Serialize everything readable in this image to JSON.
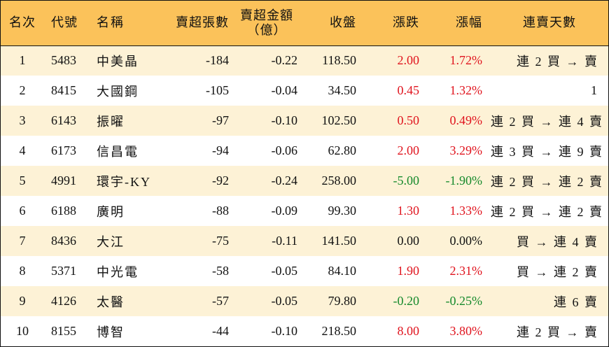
{
  "colors": {
    "header_bg": "#fbc25a",
    "row_alt_bg": "#fdf2d6",
    "up": "#e0141e",
    "down": "#168a2c"
  },
  "headers": {
    "rank": "名次",
    "code": "代號",
    "name": "名稱",
    "net_sell_lots": "賣超張數",
    "net_sell_amount_line1": "賣超金額",
    "net_sell_amount_line2": "（億）",
    "close": "收盤",
    "change": "漲跌",
    "change_pct": "漲幅",
    "streak": "連賣天數"
  },
  "rows": [
    {
      "rank": "1",
      "code": "5483",
      "name": "中美晶",
      "net_sell_lots": "-184",
      "net_sell_amount": "-0.22",
      "close": "118.50",
      "change": "2.00",
      "change_pct": "1.72%",
      "direction": "up",
      "streak": "連 2 買 → 賣"
    },
    {
      "rank": "2",
      "code": "8415",
      "name": "大國鋼",
      "net_sell_lots": "-105",
      "net_sell_amount": "-0.04",
      "close": "34.50",
      "change": "0.45",
      "change_pct": "1.32%",
      "direction": "up",
      "streak": "1"
    },
    {
      "rank": "3",
      "code": "6143",
      "name": "振曜",
      "net_sell_lots": "-97",
      "net_sell_amount": "-0.10",
      "close": "102.50",
      "change": "0.50",
      "change_pct": "0.49%",
      "direction": "up",
      "streak": "連 2 買 → 連 4 賣"
    },
    {
      "rank": "4",
      "code": "6173",
      "name": "信昌電",
      "net_sell_lots": "-94",
      "net_sell_amount": "-0.06",
      "close": "62.80",
      "change": "2.00",
      "change_pct": "3.29%",
      "direction": "up",
      "streak": "連 3 買 → 連 9 賣"
    },
    {
      "rank": "5",
      "code": "4991",
      "name": "環宇-KY",
      "net_sell_lots": "-92",
      "net_sell_amount": "-0.24",
      "close": "258.00",
      "change": "-5.00",
      "change_pct": "-1.90%",
      "direction": "down",
      "streak": "連 2 買 → 連 2 賣"
    },
    {
      "rank": "6",
      "code": "6188",
      "name": "廣明",
      "net_sell_lots": "-88",
      "net_sell_amount": "-0.09",
      "close": "99.30",
      "change": "1.30",
      "change_pct": "1.33%",
      "direction": "up",
      "streak": "連 2 買 → 連 2 賣"
    },
    {
      "rank": "7",
      "code": "8436",
      "name": "大江",
      "net_sell_lots": "-75",
      "net_sell_amount": "-0.11",
      "close": "141.50",
      "change": "0.00",
      "change_pct": "0.00%",
      "direction": "flat",
      "streak": "買 → 連 4 賣"
    },
    {
      "rank": "8",
      "code": "5371",
      "name": "中光電",
      "net_sell_lots": "-58",
      "net_sell_amount": "-0.05",
      "close": "84.10",
      "change": "1.90",
      "change_pct": "2.31%",
      "direction": "up",
      "streak": "買 → 連 2 賣"
    },
    {
      "rank": "9",
      "code": "4126",
      "name": "太醫",
      "net_sell_lots": "-57",
      "net_sell_amount": "-0.05",
      "close": "79.80",
      "change": "-0.20",
      "change_pct": "-0.25%",
      "direction": "down",
      "streak": "連 6 賣"
    },
    {
      "rank": "10",
      "code": "8155",
      "name": "博智",
      "net_sell_lots": "-44",
      "net_sell_amount": "-0.10",
      "close": "218.50",
      "change": "8.00",
      "change_pct": "3.80%",
      "direction": "up",
      "streak": "連 2 買 → 賣"
    }
  ]
}
